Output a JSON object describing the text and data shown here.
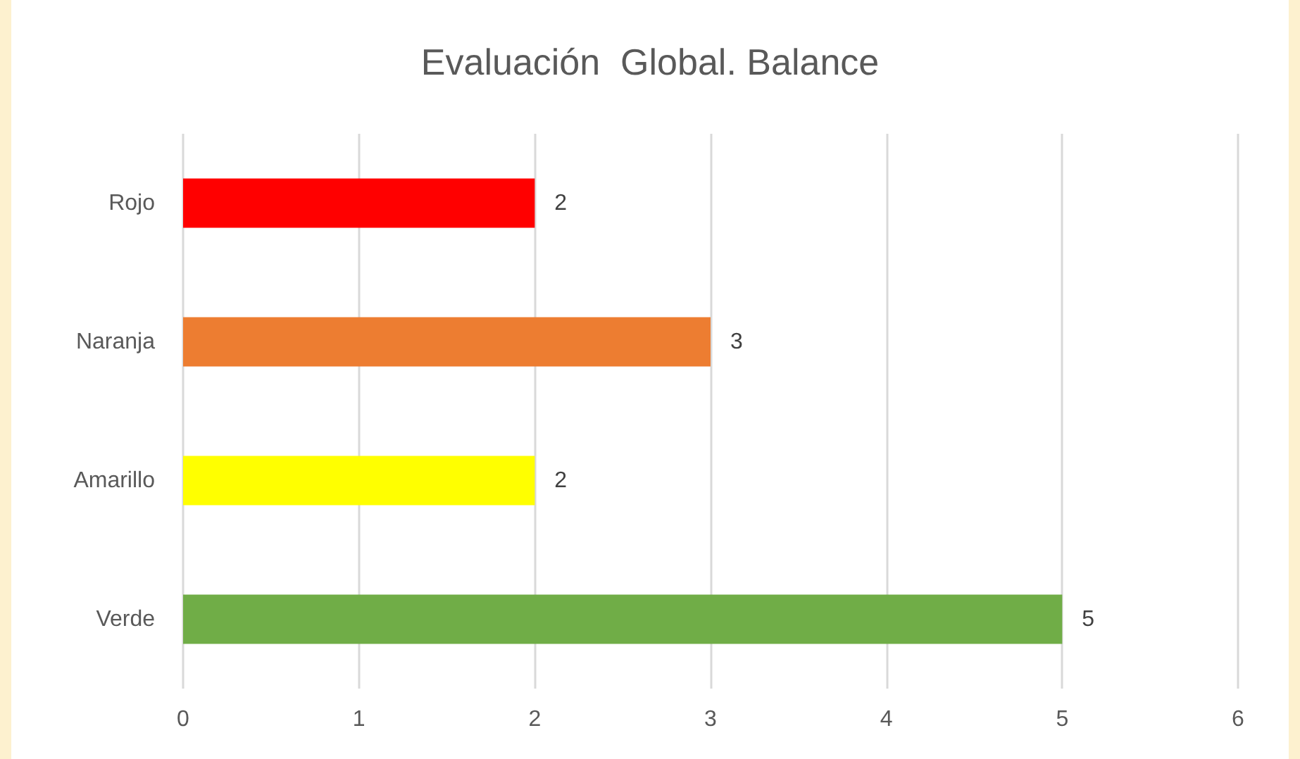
{
  "chart_data": {
    "type": "bar",
    "orientation": "horizontal",
    "title": "Evaluación  Global. Balance",
    "categories": [
      "Rojo",
      "Naranja",
      "Amarillo",
      "Verde"
    ],
    "values": [
      2,
      3,
      2,
      5
    ],
    "colors": [
      "#ff0000",
      "#ed7d31",
      "#ffff00",
      "#70ad47"
    ],
    "xlim": [
      0,
      6
    ],
    "xticks": [
      0,
      1,
      2,
      3,
      4,
      5,
      6
    ],
    "grid": "x",
    "data_labels": true
  }
}
